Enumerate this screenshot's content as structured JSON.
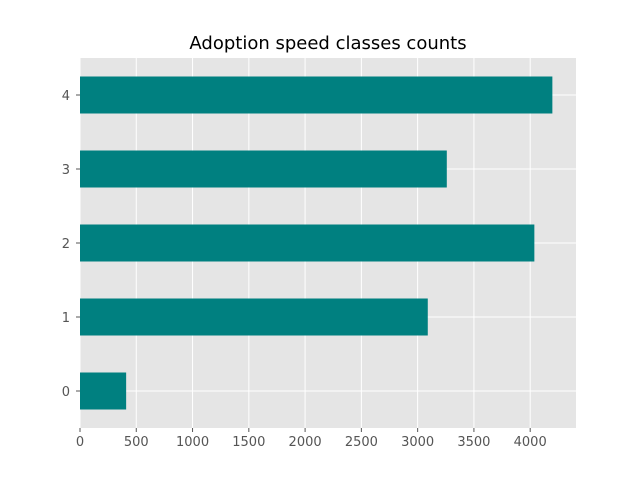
{
  "chart_data": {
    "type": "bar",
    "orientation": "horizontal",
    "title": "Adoption speed classes counts",
    "xlabel": "",
    "ylabel": "",
    "categories": [
      "0",
      "1",
      "2",
      "3",
      "4"
    ],
    "values": [
      410,
      3090,
      4037,
      3259,
      4197
    ],
    "xlim": [
      0,
      4407
    ],
    "xticks": [
      0,
      500,
      1000,
      1500,
      2000,
      2500,
      3000,
      3500,
      4000
    ],
    "grid": true,
    "legend": "none",
    "colors": {
      "bar": "#008080",
      "plot_background": "#e5e5e5",
      "grid": "#ffffff",
      "tick_text": "#555555",
      "title": "#000000"
    }
  }
}
